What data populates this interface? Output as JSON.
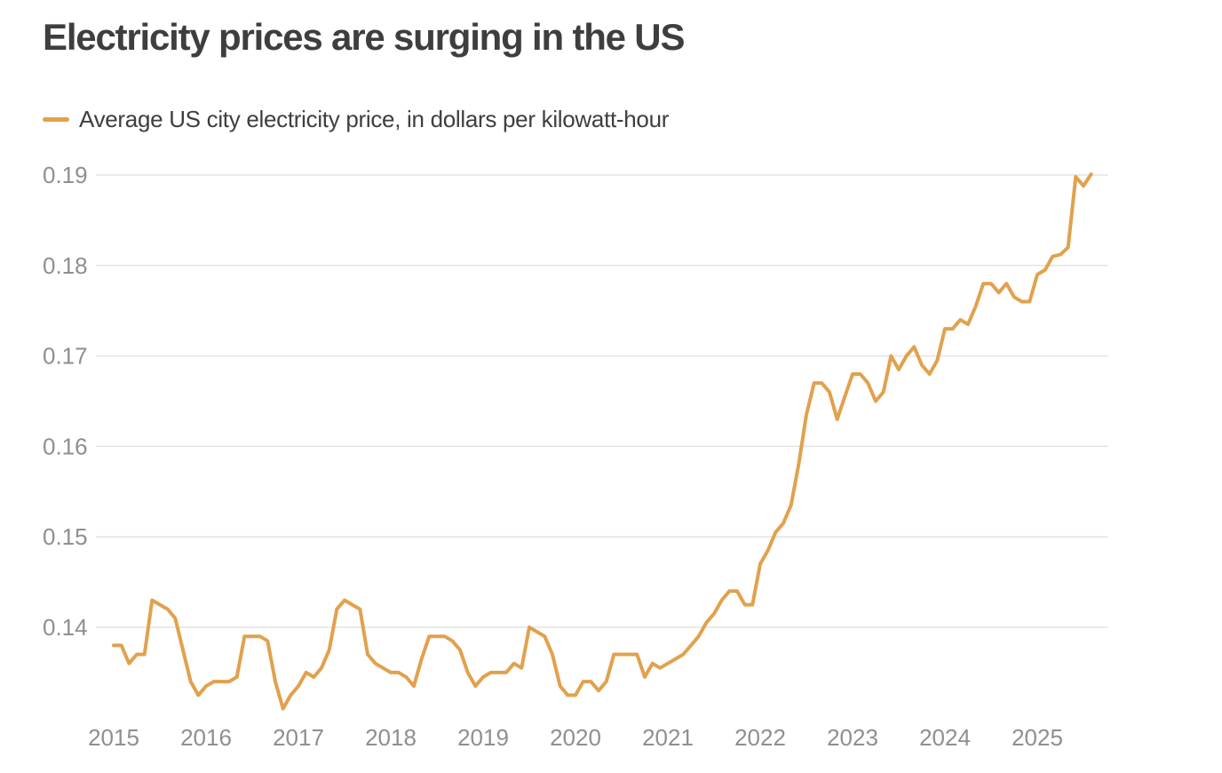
{
  "header": {
    "title": "Electricity prices are surging in the US"
  },
  "legend": {
    "label": "Average US city electricity price, in dollars per kilowatt-hour",
    "swatch_color": "#e1a14d"
  },
  "chart_data": {
    "type": "line",
    "title": "Electricity prices are surging in the US",
    "series_name": "Average US city electricity price, in dollars per kilowatt-hour",
    "x_start": "2015-01",
    "frequency": "monthly",
    "x_tick_labels": [
      "2015",
      "2016",
      "2017",
      "2018",
      "2019",
      "2020",
      "2021",
      "2022",
      "2023",
      "2024",
      "2025"
    ],
    "y_ticks": [
      0.14,
      0.15,
      0.16,
      0.17,
      0.18,
      0.19
    ],
    "y_tick_labels": [
      "0.14",
      "0.15",
      "0.16",
      "0.17",
      "0.18",
      "0.19"
    ],
    "ylabel": "dollars per kilowatt-hour",
    "xlabel": "",
    "ylim": [
      0.129,
      0.192
    ],
    "grid": "horizontal",
    "legend_position": "top-left",
    "line_color": "#e1a14d",
    "grid_color": "#e4e4e4",
    "tick_color": "#8f8f8f",
    "values": [
      0.138,
      0.138,
      0.136,
      0.137,
      0.137,
      0.143,
      0.1425,
      0.142,
      0.141,
      0.1375,
      0.134,
      0.1325,
      0.1335,
      0.134,
      0.134,
      0.134,
      0.1345,
      0.139,
      0.139,
      0.139,
      0.1385,
      0.134,
      0.131,
      0.1325,
      0.1335,
      0.135,
      0.1345,
      0.1355,
      0.1375,
      0.142,
      0.143,
      0.1425,
      0.142,
      0.137,
      0.136,
      0.1355,
      0.135,
      0.135,
      0.1345,
      0.1335,
      0.1365,
      0.139,
      0.139,
      0.139,
      0.1385,
      0.1375,
      0.135,
      0.1335,
      0.1345,
      0.135,
      0.135,
      0.135,
      0.136,
      0.1355,
      0.14,
      0.1395,
      0.139,
      0.137,
      0.1335,
      0.1325,
      0.1325,
      0.134,
      0.134,
      0.133,
      0.134,
      0.137,
      0.137,
      0.137,
      0.137,
      0.1345,
      0.136,
      0.1355,
      0.136,
      0.1365,
      0.137,
      0.138,
      0.139,
      0.1405,
      0.1415,
      0.143,
      0.144,
      0.144,
      0.1425,
      0.1425,
      0.147,
      0.1485,
      0.1505,
      0.1515,
      0.1535,
      0.158,
      0.1635,
      0.167,
      0.167,
      0.166,
      0.163,
      0.1655,
      0.168,
      0.168,
      0.167,
      0.165,
      0.166,
      0.17,
      0.1685,
      0.17,
      0.171,
      0.169,
      0.168,
      0.1695,
      0.173,
      0.173,
      0.174,
      0.1735,
      0.1755,
      0.178,
      0.178,
      0.177,
      0.178,
      0.1765,
      0.176,
      0.176,
      0.179,
      0.1795,
      0.181,
      0.1812,
      0.182,
      0.1898,
      0.1888,
      0.1901
    ]
  }
}
